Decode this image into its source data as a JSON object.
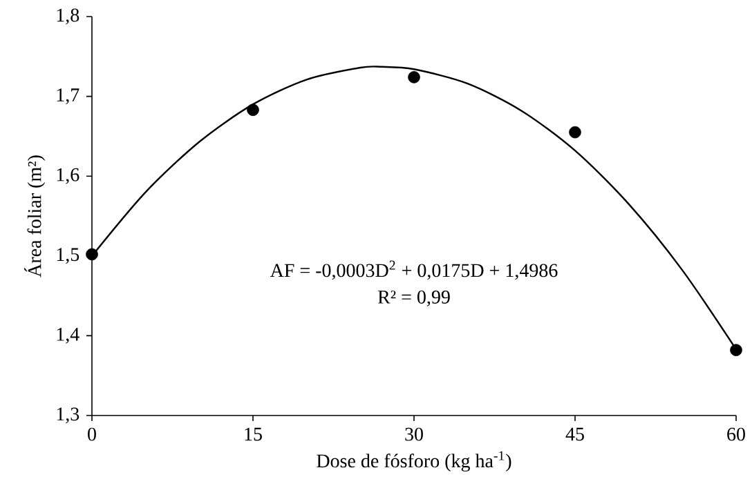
{
  "chart_data": {
    "type": "scatter",
    "xlabel": "Dose de fósforo (kg ha$^{-1}$)",
    "ylabel": "Área foliar (m²)",
    "annotations": [
      "AF = -0,0003D$^{2}$ + 0,0175D + 1,4986",
      "R² = 0,99"
    ],
    "xlim": [
      0,
      60
    ],
    "ylim": [
      1.3,
      1.8
    ],
    "xticks": [
      0,
      15,
      30,
      45,
      60
    ],
    "yticks": [
      {
        "value": 1.3,
        "label": "1,3"
      },
      {
        "value": 1.4,
        "label": "1,4"
      },
      {
        "value": 1.5,
        "label": "1,5"
      },
      {
        "value": 1.6,
        "label": "1,6"
      },
      {
        "value": 1.7,
        "label": "1,7"
      },
      {
        "value": 1.8,
        "label": "1,8"
      }
    ],
    "series": [
      {
        "type": "line",
        "color": "#000000",
        "marker": "none",
        "x": [
          0,
          5,
          10,
          15,
          20,
          25,
          27,
          30,
          35,
          40,
          45,
          50,
          55,
          60
        ],
        "values": [
          1.5,
          1.58,
          1.643,
          1.69,
          1.721,
          1.736,
          1.737,
          1.734,
          1.716,
          1.682,
          1.632,
          1.565,
          1.482,
          1.383
        ]
      },
      {
        "color": "#000000",
        "marker": "circle",
        "x": [
          0,
          15,
          30,
          45,
          60
        ],
        "values": [
          1.502,
          1.683,
          1.724,
          1.655,
          1.382
        ]
      }
    ]
  }
}
